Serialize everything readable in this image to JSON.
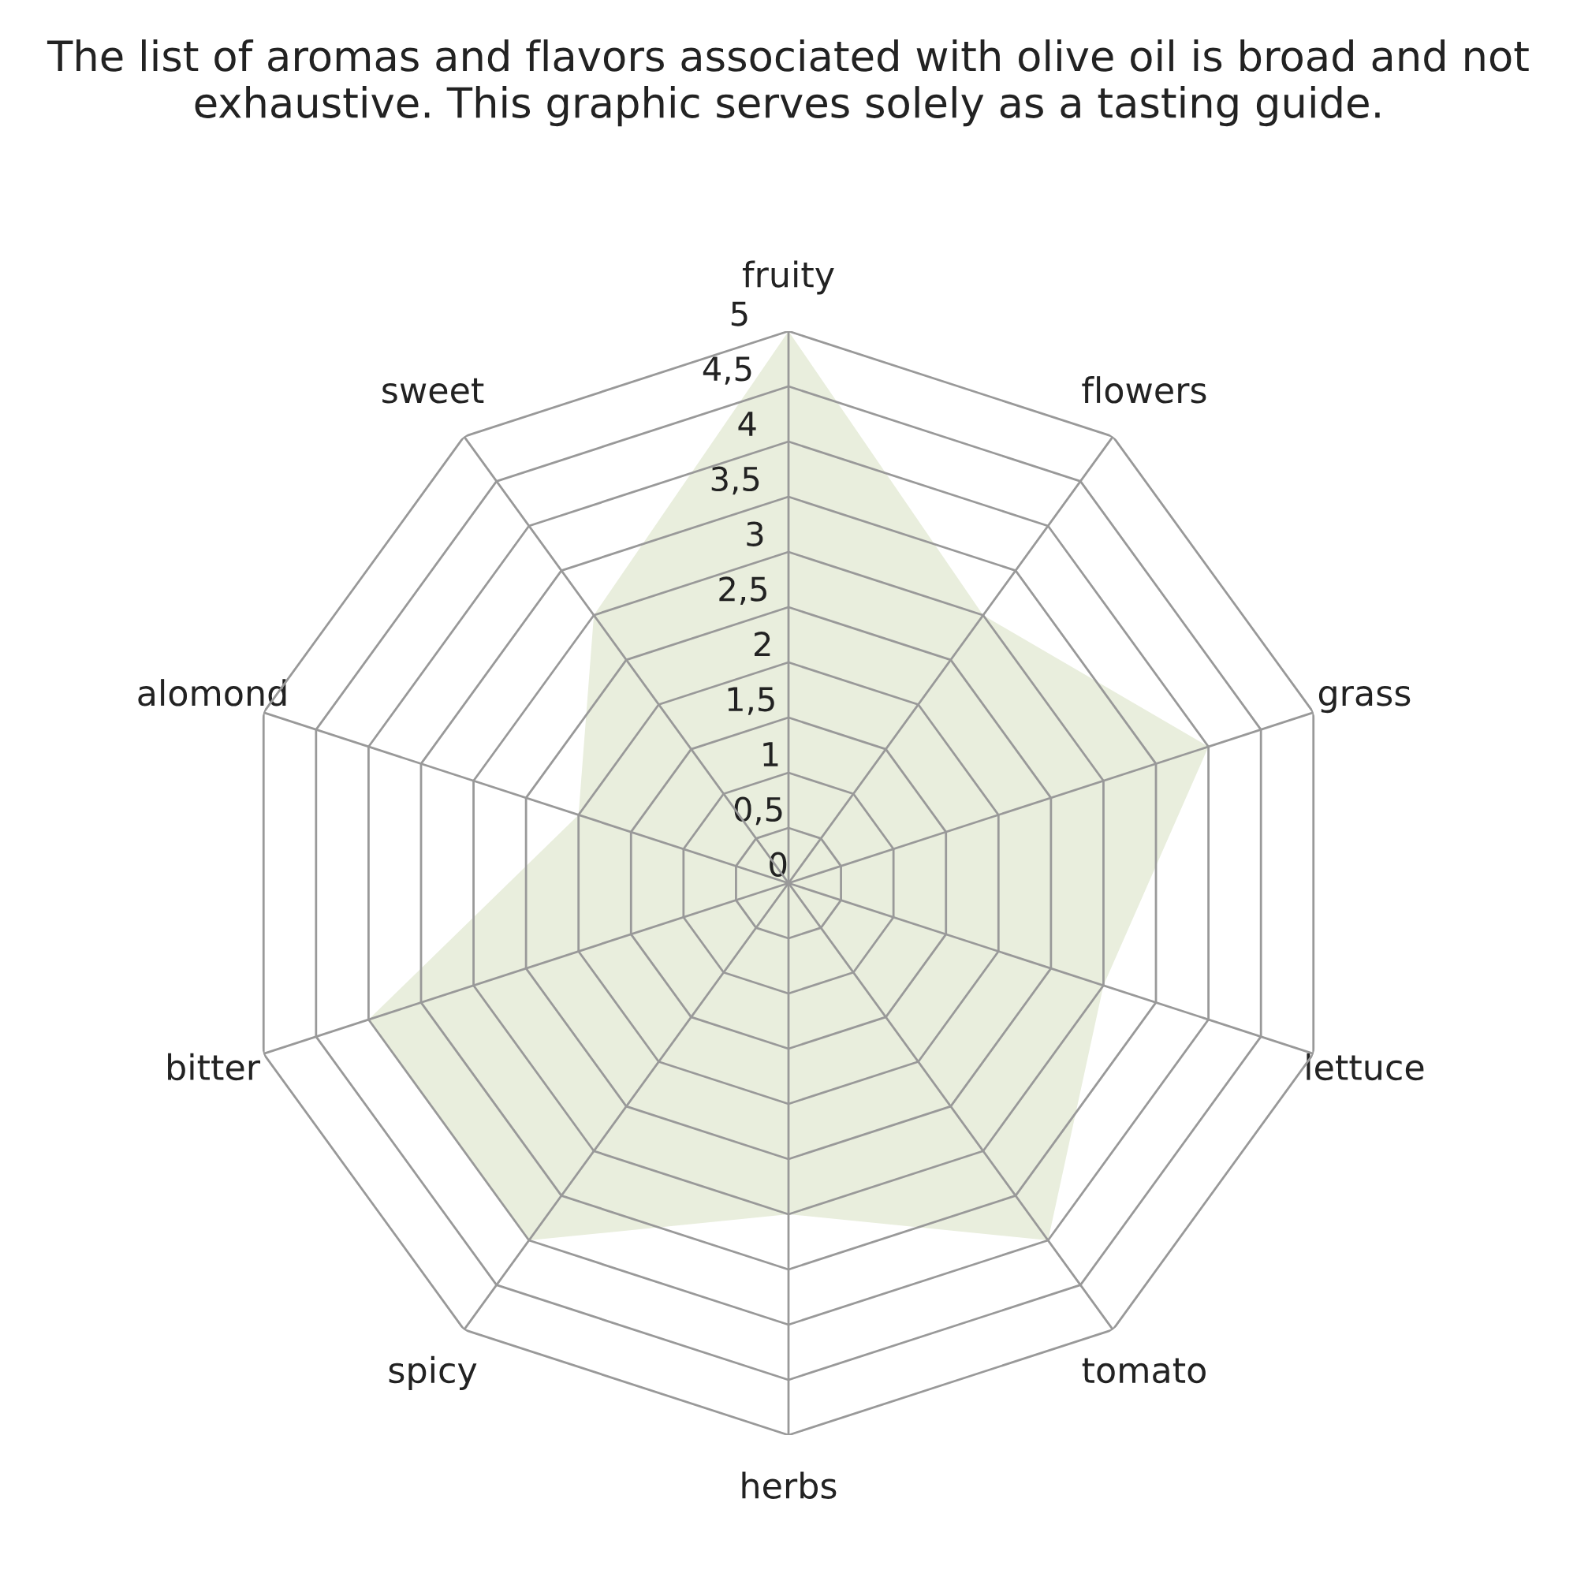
{
  "chart_data": {
    "type": "radar",
    "title": "The list of aromas and flavors associated with olive oil is broad and not exhaustive. This graphic serves solely as a tasting guide.",
    "categories": [
      "fruity",
      "flowers",
      "grass",
      "lettuce",
      "tomato",
      "herbs",
      "spicy",
      "bitter",
      "alomond",
      "sweet"
    ],
    "series": [
      {
        "color": "#e9eedd",
        "values": [
          5,
          3,
          4,
          3,
          4,
          3,
          4,
          4,
          2,
          3
        ]
      }
    ],
    "ylim": [
      0,
      5
    ],
    "yticks": [
      0,
      {
        "value": 0.5,
        "label": "0,5"
      },
      1,
      {
        "value": 1.5,
        "label": "1,5"
      },
      2,
      {
        "value": 2.5,
        "label": "2,5"
      },
      3,
      {
        "value": 3.5,
        "label": "3,5"
      },
      4,
      {
        "value": 4.5,
        "label": "4,5"
      },
      5
    ],
    "grid": true
  }
}
